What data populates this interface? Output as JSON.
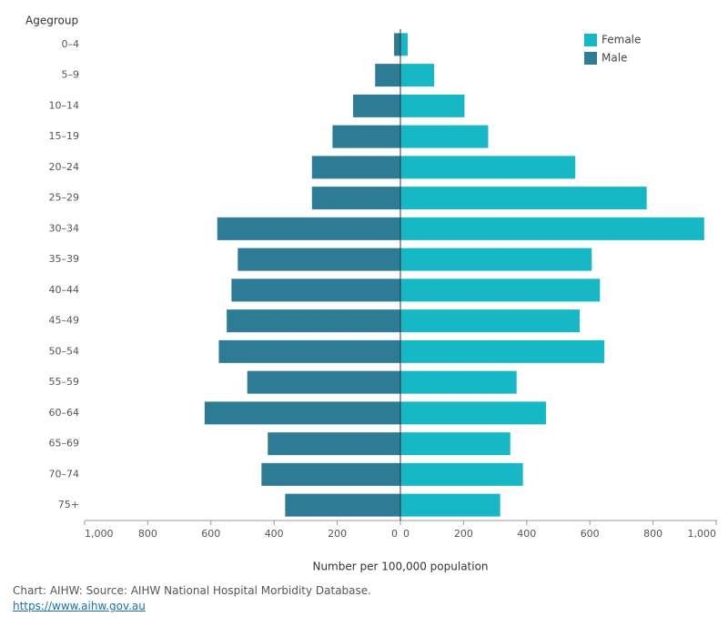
{
  "chart_data": {
    "type": "pyramid",
    "y_axis_title": "Agegroup",
    "x_axis_title": "Number per 100,000 population",
    "categories": [
      "0–4",
      "5–9",
      "10–14",
      "15–19",
      "20–24",
      "25–29",
      "30–34",
      "35–39",
      "40–44",
      "45–49",
      "50–54",
      "55–59",
      "60–64",
      "65–69",
      "70–74",
      "75+"
    ],
    "series": [
      {
        "name": "Female",
        "side": "right",
        "color": "#17b8c6",
        "values": [
          23,
          107,
          203,
          278,
          554,
          780,
          962,
          606,
          632,
          568,
          646,
          368,
          461,
          348,
          388,
          316
        ]
      },
      {
        "name": "Male",
        "side": "left",
        "color": "#2e7b96",
        "values": [
          20,
          80,
          150,
          215,
          280,
          280,
          580,
          515,
          535,
          550,
          575,
          485,
          620,
          420,
          440,
          365
        ]
      }
    ],
    "xlim": [
      0,
      1000
    ],
    "xticks": [
      0,
      200,
      400,
      600,
      800,
      {
        "value": 1000,
        "label": "1,000"
      }
    ],
    "legend": "top-right"
  },
  "footer": {
    "source": "Chart: AIHW: Source: AIHW National Hospital Morbidity Database.",
    "link": "https://www.aihw.gov.au"
  }
}
